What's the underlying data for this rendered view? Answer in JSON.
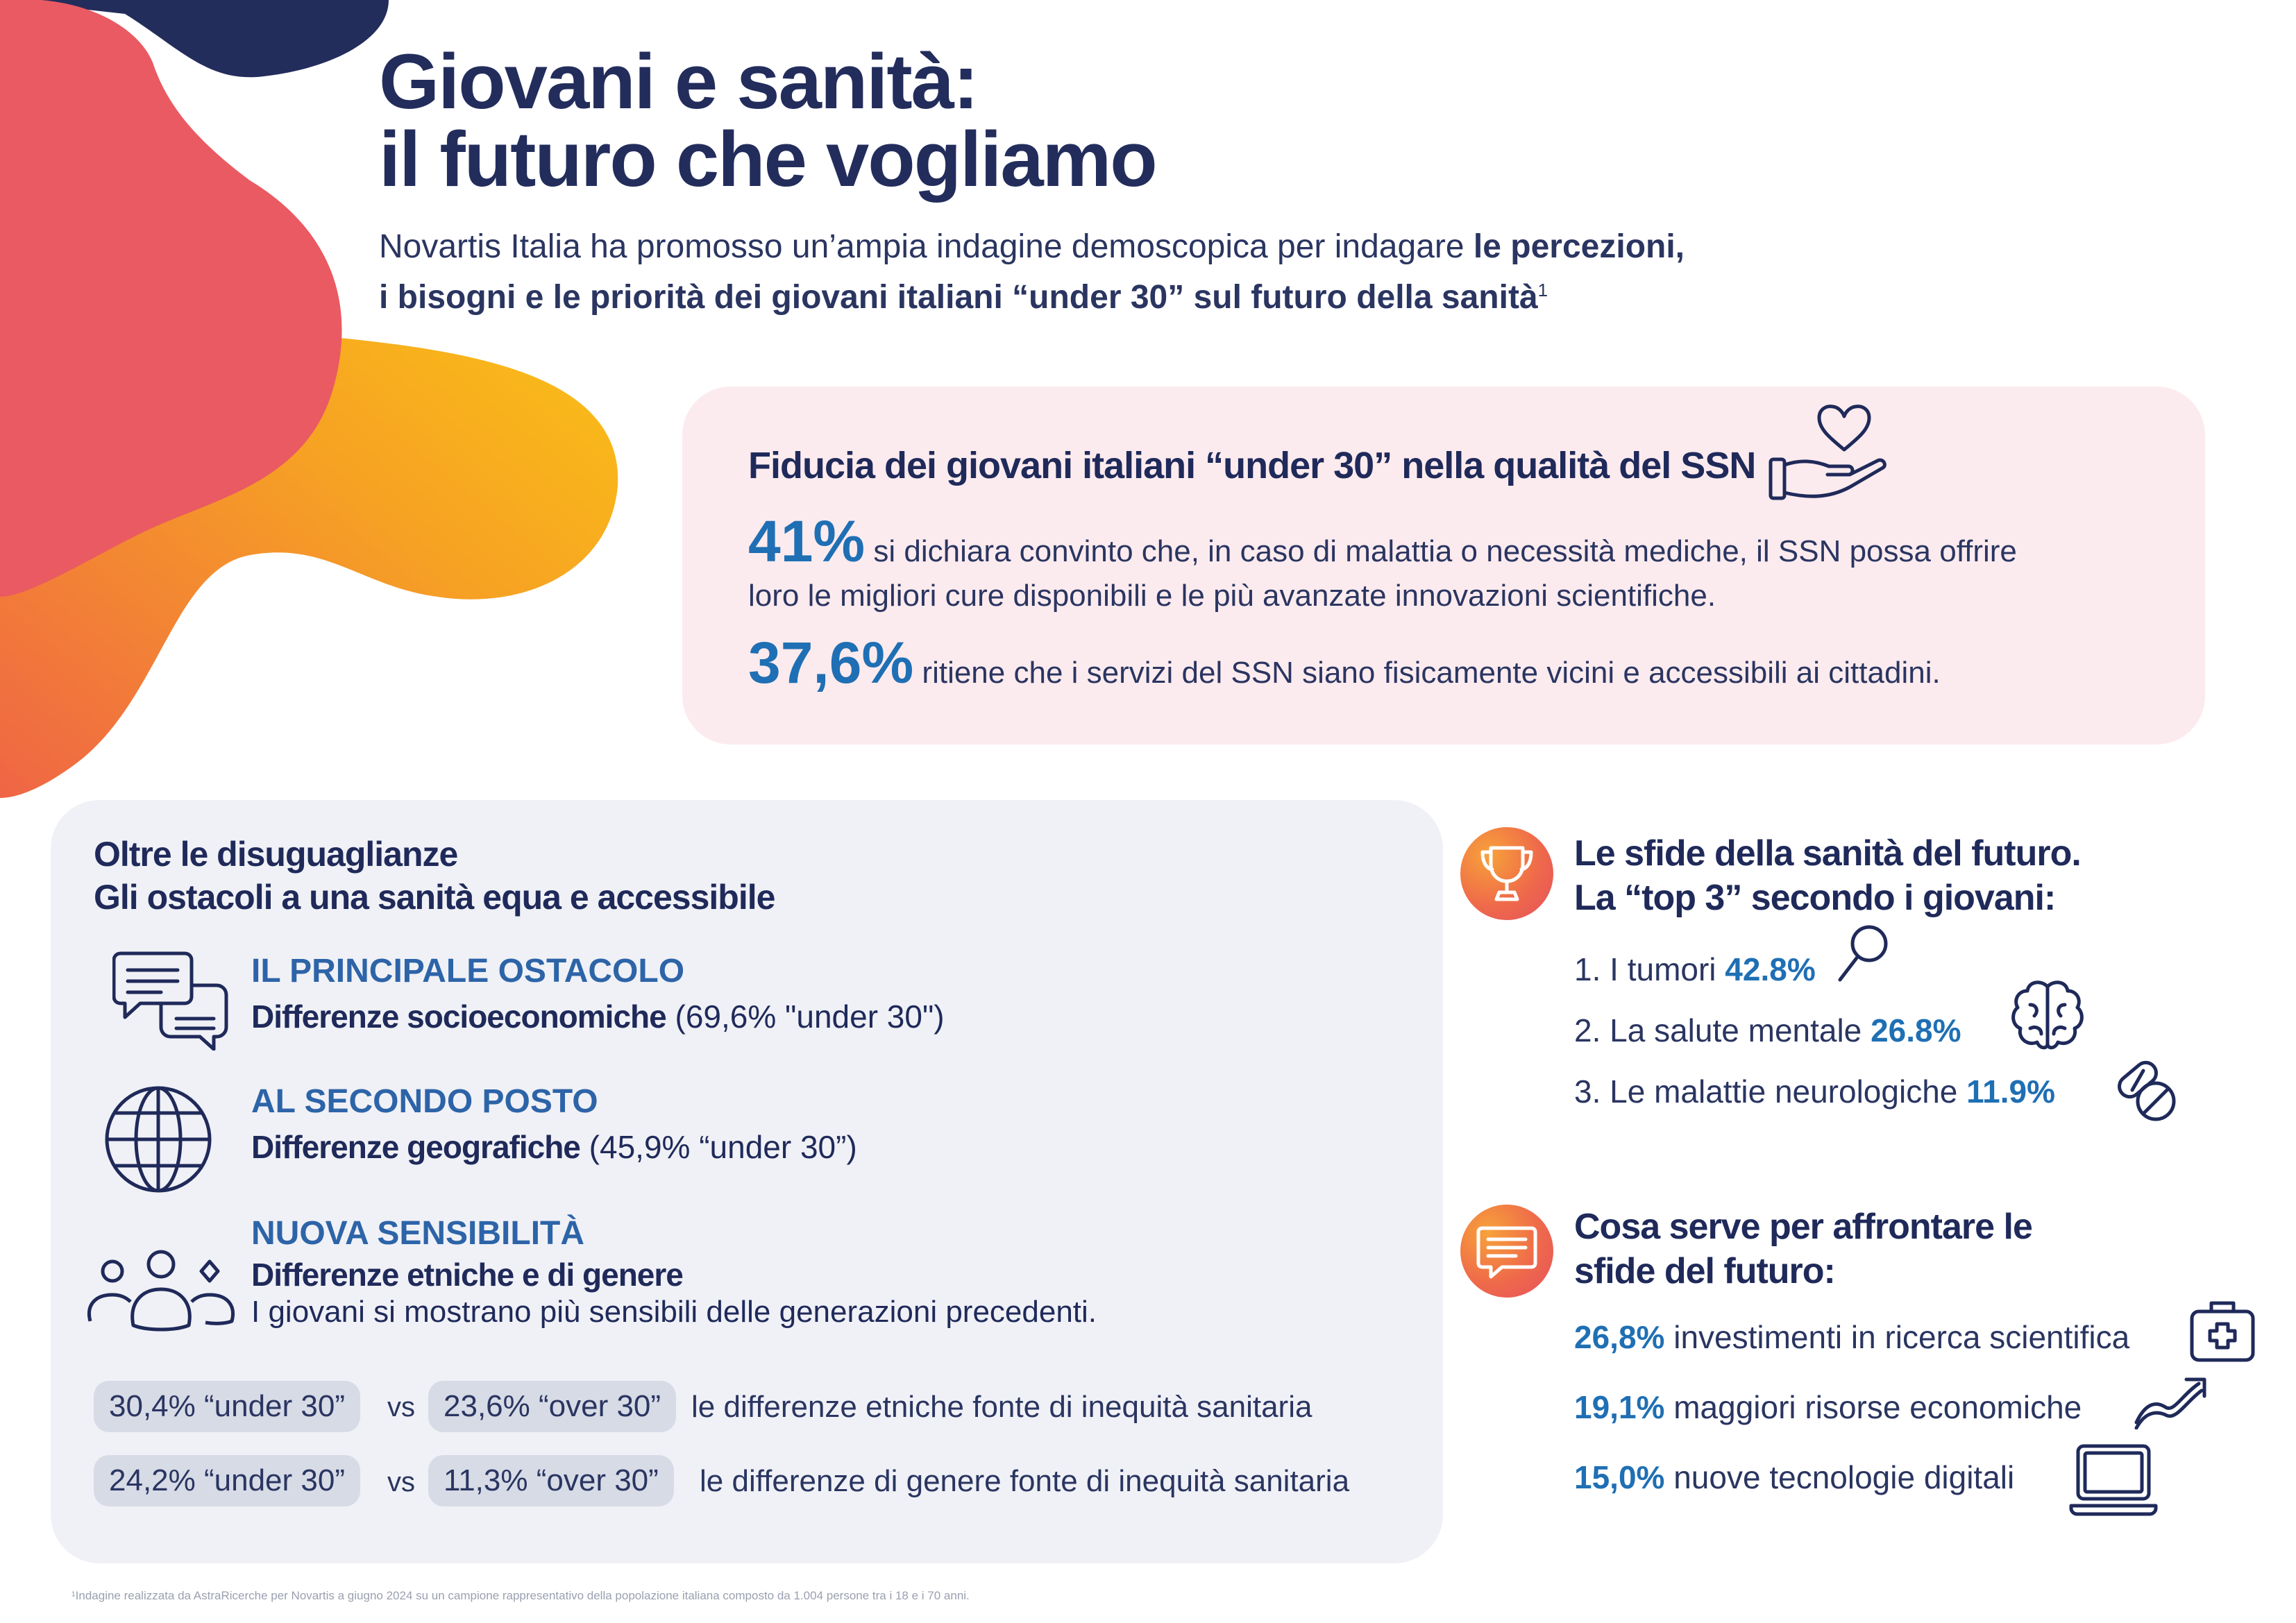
{
  "header": {
    "title_line1": "Giovani e sanità:",
    "title_line2": "il futuro che vogliamo",
    "subtitle_plain": "Novartis Italia ha promosso un’ampia indagine demoscopica per indagare ",
    "subtitle_bold1": "le percezioni,",
    "subtitle_bold2": "i bisogni e le priorità dei giovani italiani “under 30” sul futuro della sanità",
    "footnote_mark": "1"
  },
  "trust": {
    "title": "Fiducia dei giovani italiani “under 30” nella qualità del SSN",
    "icon": "heart-hand-icon",
    "stat1_value": "41%",
    "stat1_text": " si dichiara convinto che, in caso di malattia o necessità mediche, il SSN possa offrire loro le migliori cure disponibili e le più avanzate innovazioni scientifiche.",
    "stat2_value": "37,6%",
    "stat2_text": " ritiene che i servizi del SSN siano fisicamente vicini e accessibili ai cittadini."
  },
  "obstacles": {
    "title_line1": "Oltre le disuguaglianze",
    "title_line2": "Gli ostacoli a una sanità equa e accessibile",
    "items": [
      {
        "icon": "chat-bubbles-icon",
        "heading": "IL PRINCIPALE OSTACOLO",
        "bold": "Differenze socioeconomiche",
        "rest": " (69,6% \"under 30\")"
      },
      {
        "icon": "globe-icon",
        "heading": "AL SECONDO POSTO",
        "bold": "Differenze geografiche",
        "rest": " (45,9% “under 30”)"
      },
      {
        "icon": "people-icon",
        "heading": "NUOVA SENSIBILITÀ",
        "bold": "Differenze etniche e di genere",
        "rest": "I giovani si mostrano più sensibili delle generazioni precedenti."
      }
    ],
    "comparisons": [
      {
        "under": "30,4% “under 30”",
        "vs": "vs",
        "over": "23,6% “over 30”",
        "desc": "le differenze etniche fonte di inequità sanitaria"
      },
      {
        "under": "24,2% “under 30”",
        "vs": "vs",
        "over": "11,3% “over 30”",
        "desc": "le differenze di genere fonte di inequità sanitaria"
      }
    ]
  },
  "challenges": {
    "icon": "trophy-icon",
    "title_line1": "Le sfide della sanità del futuro.",
    "title_line2": "La “top 3” secondo i giovani:",
    "items": [
      {
        "label": "1. I tumori ",
        "value": "42.8%",
        "icon": "magnifier-icon"
      },
      {
        "label": "2. La salute mentale ",
        "value": "26.8%",
        "icon": "brain-icon"
      },
      {
        "label": "3. Le malattie neurologiche ",
        "value": "11.9%",
        "icon": "pills-icon"
      }
    ]
  },
  "needs": {
    "icon": "message-icon",
    "title_line1": "Cosa serve per affrontare le",
    "title_line2": "sfide del futuro:",
    "items": [
      {
        "value": "26,8%",
        "label": " investimenti in ricerca scientifica",
        "icon": "medical-kit-icon"
      },
      {
        "value": "19,1%",
        "label": " maggiori risorse economiche",
        "icon": "growth-arrow-icon"
      },
      {
        "value": "15,0%",
        "label": " nuove tecnologie digitali",
        "icon": "laptop-icon"
      }
    ]
  },
  "footnote": "¹Indagine realizzata da AstraRicerche per Novartis a giugno 2024 su un campione rappresentativo della popolazione italiana composto da 1.004 persone tra i 18 e i 70 anni.",
  "colors": {
    "navy": "#232d5c",
    "blue": "#1f6fb4",
    "coral": "#e95a62",
    "orange": "#f5a623",
    "pink_card": "#fcebee",
    "grey_card": "#f0f1f6"
  }
}
